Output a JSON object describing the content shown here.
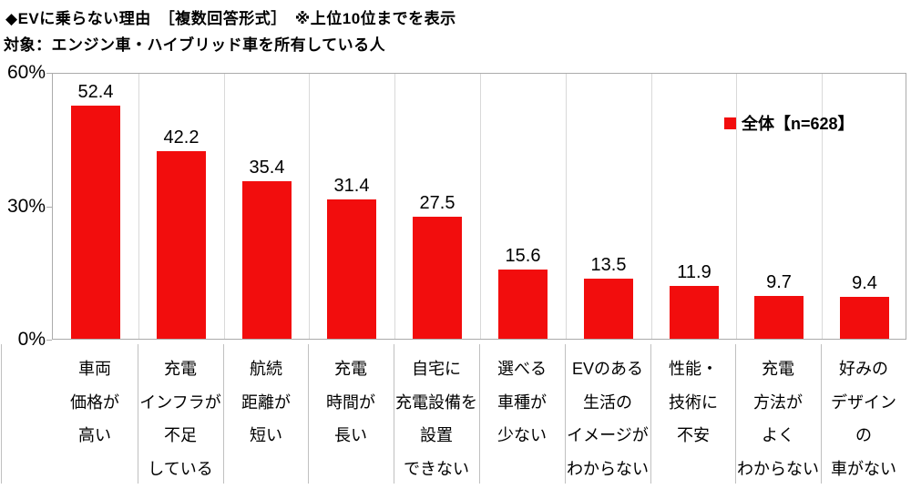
{
  "header": {
    "title": "◆EVに乗らない理由　［複数回答形式］　※上位10位までを表示",
    "subtitle": "対象：エンジン車・ハイブリッド車を所有している人"
  },
  "legend": {
    "label": "全体【n=628】",
    "marker": "red-square"
  },
  "colors": {
    "bar": "#F20D0D",
    "plot_border": "#ABABAB",
    "gridline": "#D9D9D9",
    "separator": "#C0C0C0",
    "text": "#000000",
    "background": "#FFFFFF"
  },
  "chart_data": {
    "type": "bar",
    "title": "◆EVに乗らない理由　［複数回答形式］　※上位10位までを表示",
    "subtitle": "対象：エンジン車・ハイブリッド車を所有している人",
    "legend_entries": [
      "全体【n=628】"
    ],
    "legend_position": "top-right",
    "categories": [
      "車両価格が高い",
      "充電インフラが不足している",
      "航続距離が短い",
      "充電時間が長い",
      "自宅に充電設備を設置できない",
      "選べる車種が少ない",
      "EVのある生活のイメージがわからない",
      "性能・技術に不安",
      "充電方法がよくわからない",
      "好みのデザインの車がない"
    ],
    "category_label_lines": [
      [
        "車両",
        "価格が",
        "高い"
      ],
      [
        "充電",
        "インフラが",
        "不足",
        "している"
      ],
      [
        "航続",
        "距離が",
        "短い"
      ],
      [
        "充電",
        "時間が",
        "長い"
      ],
      [
        "自宅に",
        "充電設備を",
        "設置",
        "できない"
      ],
      [
        "選べる",
        "車種が",
        "少ない"
      ],
      [
        "EVのある",
        "生活の",
        "イメージが",
        "わからない"
      ],
      [
        "性能・",
        "技術に",
        "不安"
      ],
      [
        "充電",
        "方法が",
        "よく",
        "わからない"
      ],
      [
        "好みの",
        "デザイン",
        "の",
        "車がない"
      ]
    ],
    "values": [
      52.4,
      42.2,
      35.4,
      31.4,
      27.5,
      15.6,
      13.5,
      11.9,
      9.7,
      9.4
    ],
    "unit": "%",
    "ylim": [
      0,
      60
    ],
    "yticks": [
      {
        "label": "60%",
        "value": 60
      },
      {
        "label": "30%",
        "value": 30
      },
      {
        "label": "0%",
        "value": 0
      }
    ],
    "grid": "vertical category separators only, no horizontal gridlines",
    "value_labels_shown": true
  }
}
